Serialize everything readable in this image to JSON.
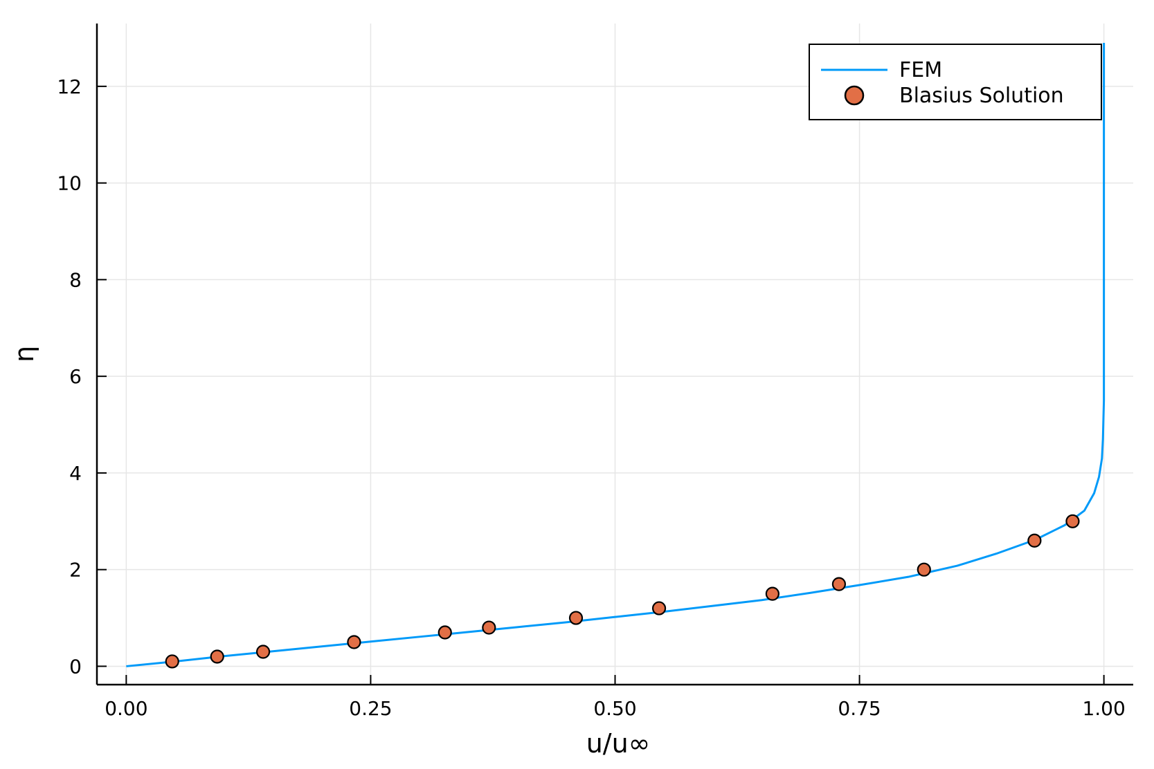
{
  "chart_data": {
    "type": "line",
    "title": "",
    "xlabel": "u/u∞",
    "ylabel": "η",
    "xlim": [
      -0.03,
      1.03
    ],
    "ylim": [
      -0.38,
      13.3
    ],
    "xticks": [
      0.0,
      0.25,
      0.5,
      0.75,
      1.0
    ],
    "xtick_labels": [
      "0.00",
      "0.25",
      "0.50",
      "0.75",
      "1.00"
    ],
    "yticks": [
      0,
      2,
      4,
      6,
      8,
      10,
      12
    ],
    "ytick_labels": [
      "0",
      "2",
      "4",
      "6",
      "8",
      "10",
      "12"
    ],
    "grid": true,
    "legend_position": "top-right",
    "series": [
      {
        "name": "FEM",
        "kind": "line",
        "color": "#009af9",
        "x": [
          0.0,
          0.05,
          0.1,
          0.15,
          0.2,
          0.25,
          0.3,
          0.35,
          0.4,
          0.45,
          0.5,
          0.55,
          0.6,
          0.65,
          0.7,
          0.75,
          0.8,
          0.85,
          0.89,
          0.93,
          0.96,
          0.98,
          0.99,
          0.995,
          0.998,
          0.999,
          1.0,
          1.0,
          1.0,
          1.0
        ],
        "y": [
          0.0,
          0.1,
          0.21,
          0.31,
          0.41,
          0.51,
          0.61,
          0.71,
          0.81,
          0.91,
          1.02,
          1.13,
          1.25,
          1.37,
          1.52,
          1.68,
          1.85,
          2.08,
          2.33,
          2.62,
          2.92,
          3.22,
          3.58,
          3.92,
          4.3,
          4.7,
          5.5,
          8.0,
          11.0,
          12.9
        ]
      },
      {
        "name": "Blasius Solution",
        "kind": "scatter",
        "color": "#e26f46",
        "x": [
          0.047,
          0.093,
          0.14,
          0.233,
          0.326,
          0.371,
          0.46,
          0.545,
          0.661,
          0.729,
          0.816,
          0.929,
          0.968
        ],
        "y": [
          0.1,
          0.2,
          0.3,
          0.5,
          0.7,
          0.8,
          1.0,
          1.2,
          1.5,
          1.7,
          2.0,
          2.6,
          3.0
        ]
      }
    ]
  }
}
